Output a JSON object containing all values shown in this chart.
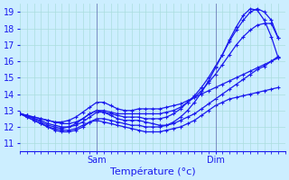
{
  "title": "Température (°c)",
  "bg_color": "#cceeff",
  "line_color": "#1a1aee",
  "grid_color": "#aadddd",
  "ylim": [
    10.5,
    19.5
  ],
  "yticks": [
    11,
    12,
    13,
    14,
    15,
    16,
    17,
    18,
    19
  ],
  "xlim": [
    0,
    38
  ],
  "sam_x": 11,
  "dim_x": 28,
  "series": [
    [
      12.8,
      12.7,
      12.6,
      12.5,
      12.4,
      12.3,
      12.3,
      12.4,
      12.6,
      12.9,
      13.2,
      13.5,
      13.5,
      13.3,
      13.1,
      13.0,
      13.0,
      13.1,
      13.1,
      13.1,
      13.1,
      13.2,
      13.3,
      13.4,
      13.6,
      13.8,
      14.0,
      14.2,
      14.4,
      14.6,
      14.8,
      15.0,
      15.2,
      15.4,
      15.6,
      15.8,
      16.0,
      16.2
    ],
    [
      12.8,
      12.6,
      12.4,
      12.2,
      12.0,
      11.9,
      11.8,
      11.8,
      11.9,
      12.1,
      12.3,
      12.4,
      12.3,
      12.2,
      12.1,
      12.0,
      11.9,
      11.8,
      11.7,
      11.7,
      11.7,
      11.8,
      11.9,
      12.0,
      12.2,
      12.4,
      12.7,
      13.0,
      13.3,
      13.5,
      13.7,
      13.8,
      13.9,
      14.0,
      14.1,
      14.2,
      14.3,
      14.4
    ],
    [
      12.8,
      12.7,
      12.5,
      12.3,
      12.1,
      12.0,
      11.9,
      12.0,
      12.2,
      12.5,
      12.8,
      13.0,
      12.9,
      12.7,
      12.5,
      12.4,
      12.4,
      12.4,
      12.3,
      12.2,
      12.1,
      12.1,
      12.2,
      12.4,
      12.6,
      12.8,
      13.1,
      13.4,
      13.7,
      14.0,
      14.3,
      14.6,
      14.9,
      15.2,
      15.5,
      15.7,
      16.0,
      16.3
    ],
    [
      12.8,
      12.7,
      12.6,
      12.5,
      12.4,
      12.3,
      12.2,
      12.2,
      12.3,
      12.5,
      12.8,
      13.0,
      13.0,
      12.9,
      12.8,
      12.8,
      12.8,
      12.8,
      12.8,
      12.8,
      12.8,
      12.9,
      13.0,
      13.2,
      13.5,
      13.8,
      14.2,
      14.7,
      15.2,
      15.8,
      16.4,
      17.0,
      17.5,
      17.9,
      18.2,
      18.3,
      18.3,
      17.4
    ],
    [
      12.8,
      12.7,
      12.5,
      12.4,
      12.2,
      12.1,
      12.0,
      12.0,
      12.1,
      12.3,
      12.6,
      12.9,
      12.9,
      12.8,
      12.7,
      12.6,
      12.6,
      12.6,
      12.5,
      12.5,
      12.5,
      12.6,
      12.8,
      13.1,
      13.5,
      13.9,
      14.4,
      15.0,
      15.7,
      16.4,
      17.2,
      17.9,
      18.5,
      19.0,
      19.2,
      19.0,
      18.5,
      17.4
    ],
    [
      12.8,
      12.6,
      12.4,
      12.2,
      12.0,
      11.8,
      11.7,
      11.7,
      11.8,
      12.0,
      12.3,
      12.5,
      12.5,
      12.4,
      12.3,
      12.2,
      12.1,
      12.1,
      12.0,
      12.0,
      12.0,
      12.1,
      12.3,
      12.6,
      13.0,
      13.5,
      14.1,
      14.8,
      15.6,
      16.4,
      17.3,
      18.1,
      18.8,
      19.2,
      19.1,
      18.5,
      17.5,
      16.2
    ]
  ],
  "n_points": 38
}
